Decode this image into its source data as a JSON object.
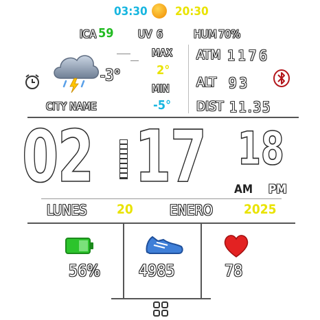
{
  "sun": {
    "sunrise": "03:30",
    "sunset": "20:30"
  },
  "top_stats": {
    "ica_label": "ICA",
    "ica_value": "59",
    "uv_label": "UV",
    "uv_value": "6",
    "hum_label": "HUM",
    "hum_value": "70%"
  },
  "weather": {
    "current_temp": "-3°",
    "max_label": "MAX",
    "max_value": "2°",
    "min_label": "MIN",
    "min_value": "-5°",
    "city": "CITY NAME",
    "icon": "cloud-thunder-icon"
  },
  "environment": {
    "atm_label": "ATM",
    "atm_value": "1176",
    "alt_label": "ALT",
    "alt_value": "93",
    "dist_label": "DIST",
    "dist_value": "11.35"
  },
  "time": {
    "hours": "02",
    "minutes": "17",
    "seconds": "18",
    "am": "AM",
    "pm": "PM"
  },
  "date": {
    "weekday": "LUNES",
    "day": "20",
    "month": "ENERO",
    "year": "2025"
  },
  "bottom": {
    "battery": "56%",
    "steps": "4985",
    "heart_rate": "78"
  },
  "colors": {
    "yellow": "#e9e300",
    "cyan": "#18b6e0",
    "green": "#22bb22",
    "battery_green": "#2cc42c",
    "heart_red": "#e32222",
    "bluetooth_red": "#b3161b",
    "shoe_blue": "#3f7fd8"
  }
}
